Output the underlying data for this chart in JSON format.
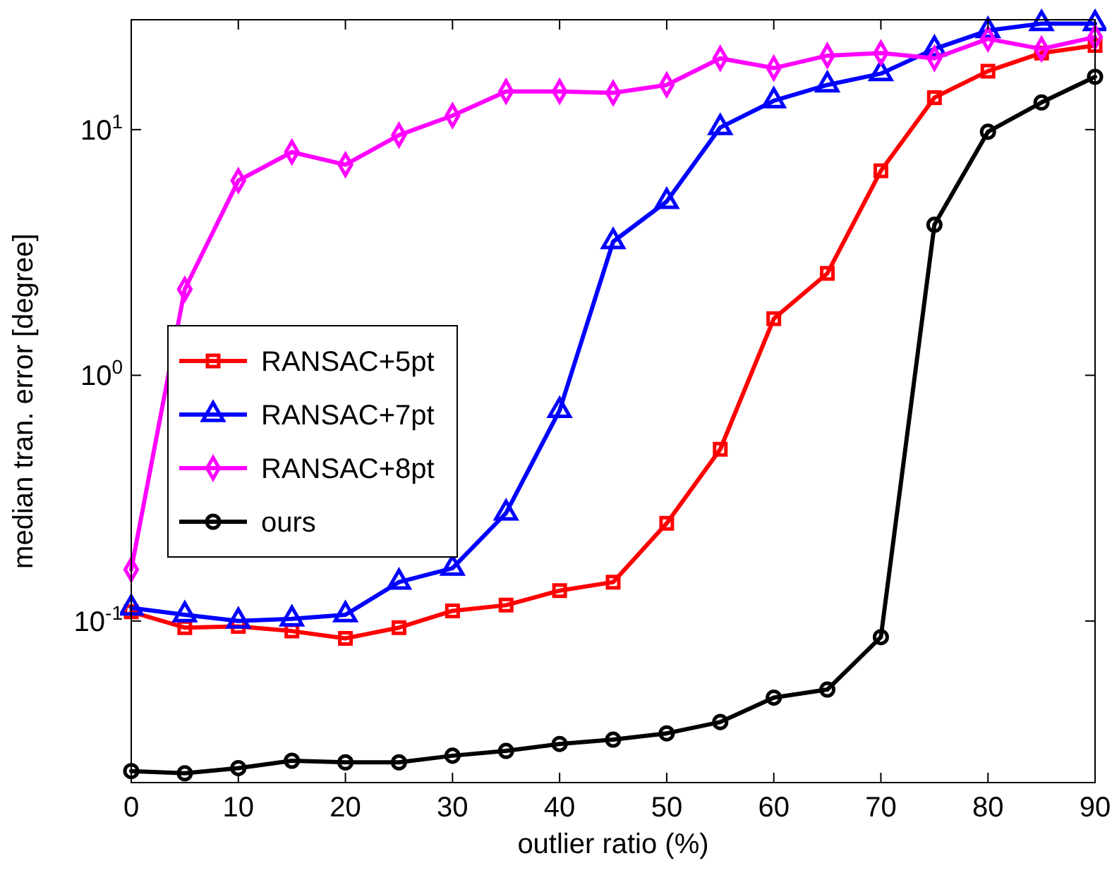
{
  "chart_data": {
    "type": "line",
    "xlabel": "outlier ratio (%)",
    "ylabel": "median tran. error [degree]",
    "x": [
      0,
      5,
      10,
      15,
      20,
      25,
      30,
      35,
      40,
      45,
      50,
      55,
      60,
      65,
      70,
      75,
      80,
      85,
      90
    ],
    "series": [
      {
        "name": "RANSAC+5pt",
        "color": "#ff0000",
        "marker": "square",
        "values": [
          0.109,
          0.094,
          0.095,
          0.091,
          0.085,
          0.094,
          0.11,
          0.116,
          0.133,
          0.144,
          0.25,
          0.5,
          1.7,
          2.6,
          6.8,
          13.5,
          17.3,
          20.5,
          22
        ]
      },
      {
        "name": "RANSAC+7pt",
        "color": "#0000ff",
        "marker": "triangle",
        "values": [
          0.113,
          0.106,
          0.1,
          0.102,
          0.106,
          0.144,
          0.164,
          0.275,
          0.72,
          3.5,
          5.1,
          10.2,
          13.1,
          15.2,
          16.9,
          21.3,
          25.3,
          27,
          27
        ]
      },
      {
        "name": "RANSAC+8pt",
        "color": "#ff00ff",
        "marker": "diamond",
        "values": [
          0.162,
          2.24,
          6.2,
          8.1,
          7.2,
          9.5,
          11.4,
          14.3,
          14.3,
          14.1,
          15.2,
          19.5,
          17.8,
          20,
          20.5,
          19.5,
          23.4,
          21.3,
          23.8
        ]
      },
      {
        "name": "ours",
        "color": "#000000",
        "marker": "circle",
        "values": [
          0.0245,
          0.024,
          0.0252,
          0.027,
          0.0266,
          0.0266,
          0.0283,
          0.0296,
          0.0316,
          0.0329,
          0.0349,
          0.0388,
          0.0488,
          0.0526,
          0.086,
          4.1,
          9.8,
          12.9,
          16.4
        ]
      }
    ],
    "xlim": [
      0,
      90
    ],
    "xticks": [
      0,
      10,
      20,
      30,
      40,
      50,
      60,
      70,
      80,
      90
    ],
    "ylim": [
      0.022,
      28
    ],
    "yticks": [
      {
        "value": 0.1,
        "label": "10$^{-1}$"
      },
      {
        "value": 1,
        "label": "10$^{0}$"
      },
      {
        "value": 10,
        "label": "10$^{1}$"
      }
    ],
    "log": true,
    "grid": false,
    "legend": "left",
    "line_style": "solid"
  }
}
